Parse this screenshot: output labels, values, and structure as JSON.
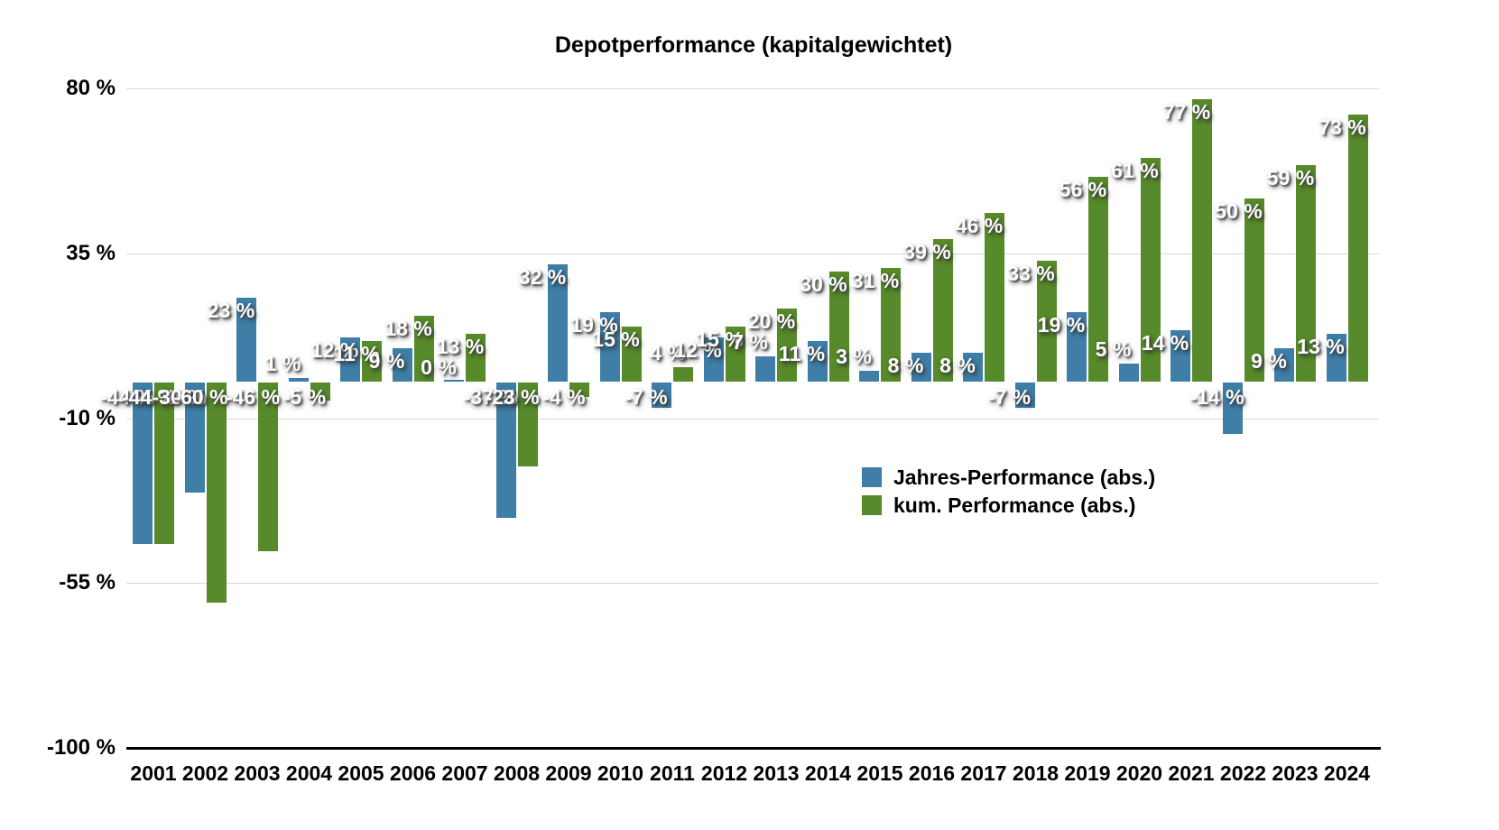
{
  "title": "Depotperformance (kapitalgewichtet)",
  "colors": {
    "annual_bar": "#3e7ea7",
    "cumulative_bar": "#578a2b",
    "gridline": "#d9d9d9",
    "axis_line": "#000000",
    "value_label_text": "#ffffff"
  },
  "legend": {
    "items": [
      {
        "label": "Jahres-Performance (abs.)",
        "color": "#3e7ea7"
      },
      {
        "label": "kum. Performance (abs.)",
        "color": "#578a2b"
      }
    ]
  },
  "y_axis": {
    "ticks": [
      {
        "label": "80 %",
        "value": 80
      },
      {
        "label": "35 %",
        "value": 35
      },
      {
        "label": "-10 %",
        "value": -10
      },
      {
        "label": "-55 %",
        "value": -55
      },
      {
        "label": "-100 %",
        "value": -100
      }
    ]
  },
  "value_suffix": " %",
  "chart_data": {
    "type": "bar",
    "title": "Depotperformance (kapitalgewichtet)",
    "xlabel": "",
    "ylabel": "",
    "ylim": [
      -100,
      80
    ],
    "yticks": [
      80,
      35,
      -10,
      -55,
      -100
    ],
    "grid": true,
    "legend_position": "center-right",
    "value_labels": "each bar labeled with integer percent",
    "categories": [
      "2001",
      "2002",
      "2003",
      "2004",
      "2005",
      "2006",
      "2007",
      "2008",
      "2009",
      "2010",
      "2011",
      "2012",
      "2013",
      "2014",
      "2015",
      "2016",
      "2017",
      "2018",
      "2019",
      "2020",
      "2021",
      "2022",
      "2023",
      "2024"
    ],
    "series": [
      {
        "name": "Jahres-Performance (abs.)",
        "color": "#3e7ea7",
        "values": [
          -44,
          -30,
          23,
          1,
          12,
          9,
          0,
          -37,
          32,
          19,
          -7,
          12,
          7,
          11,
          3,
          8,
          8,
          -7,
          19,
          5,
          14,
          -14,
          9,
          13
        ]
      },
      {
        "name": "kum. Performance (abs.)",
        "color": "#578a2b",
        "values": [
          -44,
          -60,
          -46,
          -5,
          11,
          18,
          13,
          -23,
          -4,
          15,
          4,
          15,
          20,
          30,
          31,
          39,
          46,
          33,
          56,
          61,
          77,
          50,
          59,
          73
        ]
      }
    ]
  }
}
